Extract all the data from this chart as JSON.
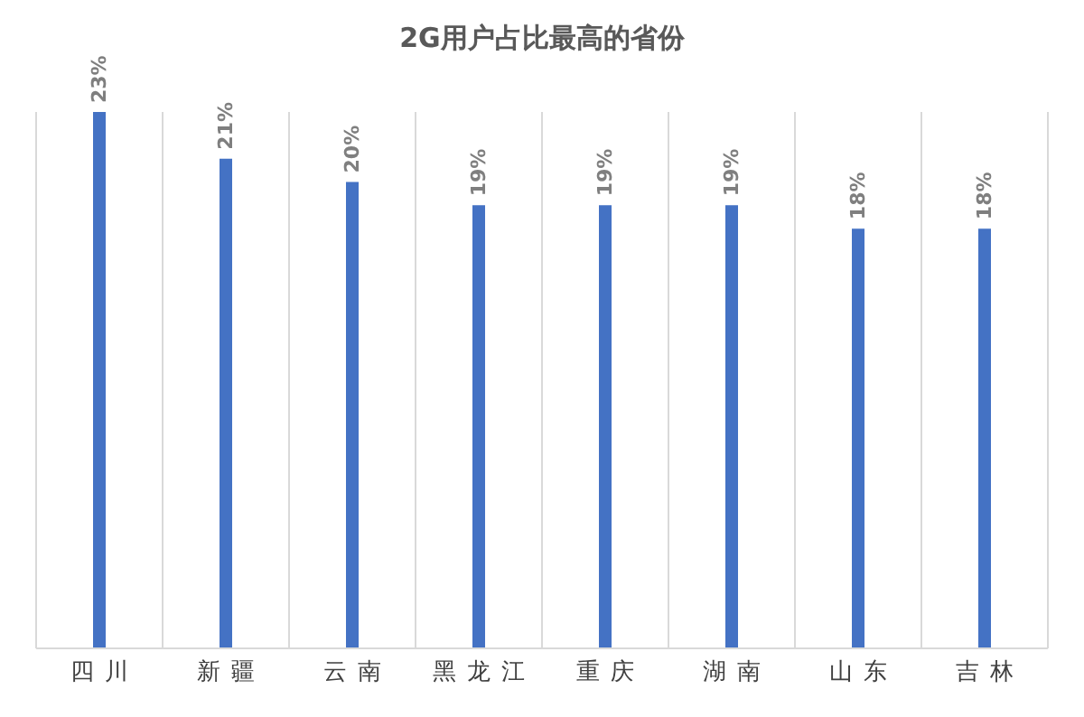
{
  "chart_data": {
    "type": "bar",
    "title": "2G用户占比最高的省份",
    "categories": [
      "四川",
      "新疆",
      "云南",
      "黑龙江",
      "重庆",
      "湖南",
      "山东",
      "吉林"
    ],
    "values": [
      23,
      21,
      20,
      19,
      19,
      19,
      18,
      18
    ],
    "value_labels": [
      "23%",
      "21%",
      "20%",
      "19%",
      "19%",
      "19%",
      "18%",
      "18%"
    ],
    "color": "#4472c4",
    "grid": "x"
  }
}
